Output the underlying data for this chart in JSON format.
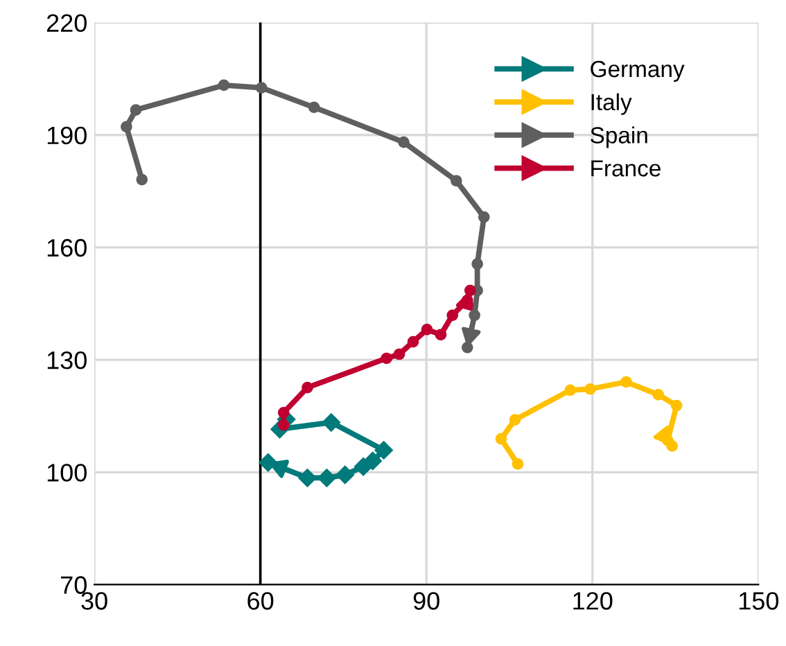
{
  "chart_data": {
    "type": "line",
    "xlim": [
      30,
      150
    ],
    "ylim": [
      70,
      220
    ],
    "xticks": [
      30,
      60,
      90,
      120,
      150
    ],
    "yticks": [
      70,
      100,
      130,
      160,
      190,
      220
    ],
    "grid": true,
    "legend": "top right",
    "ref_lines": [
      {
        "axis": "x",
        "value": 60,
        "color": "#000000"
      }
    ],
    "series": [
      {
        "name": "Germany",
        "color": "#007a7a",
        "marker": "diamond",
        "x": [
          64.7,
          63.5,
          72.8,
          82.3,
          80.3,
          78.6,
          75.3,
          72,
          68.5,
          61.4
        ],
        "values": [
          114.1,
          111.5,
          113.3,
          105.9,
          103,
          101.5,
          99.3,
          98.5,
          98.5,
          102.6
        ]
      },
      {
        "name": "Italy",
        "color": "#ffc000",
        "marker": "circle",
        "x": [
          106.5,
          103.5,
          106,
          116,
          119.6,
          126.1,
          131.9,
          135.2,
          133.6,
          134.4
        ],
        "values": [
          102.2,
          108.9,
          114,
          121.9,
          122.2,
          124.1,
          120.7,
          117.8,
          108.5,
          107
        ]
      },
      {
        "name": "Spain",
        "color": "#5f5f5f",
        "marker": "circle",
        "x": [
          38.6,
          35.8,
          37.5,
          53.4,
          60.2,
          69.7,
          85.9,
          95.4,
          100.4,
          99.2,
          99.2,
          98.7,
          97.4
        ],
        "values": [
          178.1,
          192.2,
          196.7,
          203.3,
          202.6,
          197.4,
          188.1,
          177.8,
          168.1,
          155.6,
          148.5,
          141.9,
          133.3
        ]
      },
      {
        "name": "France",
        "color": "#c00030",
        "marker": "circle",
        "x": [
          64.2,
          64.2,
          68.5,
          82.8,
          85.1,
          87.6,
          90.1,
          92.6,
          94.7,
          97.4,
          97.9
        ],
        "values": [
          112.6,
          115.9,
          122.6,
          130.4,
          131.5,
          134.8,
          138.1,
          136.7,
          141.9,
          145.9,
          148.5
        ]
      }
    ]
  }
}
